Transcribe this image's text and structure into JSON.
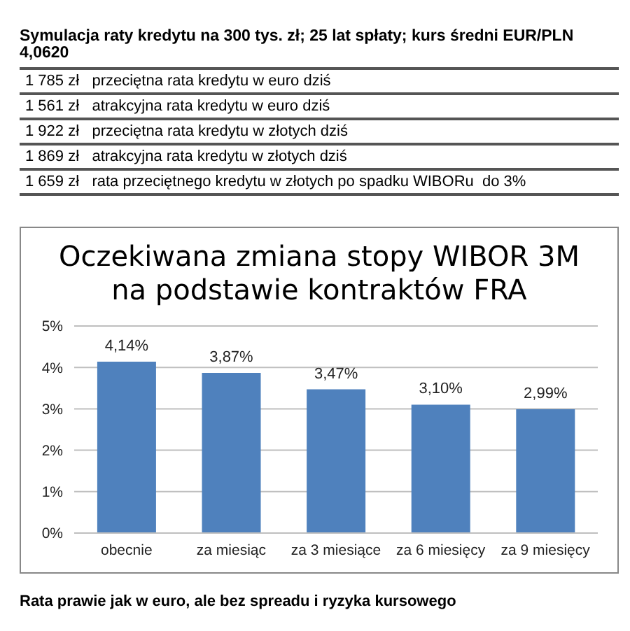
{
  "chart_data": [
    {
      "type": "other",
      "title": "Symulacja raty kredytu na 300 tys. zł; 25 lat spłaty; kurs średni EUR/PLN 4,0620",
      "annotations": [
        "1 785 zł   przeciętna rata kredytu w euro dziś",
        "1 561 zł   atrakcyjna rata kredytu w euro dziś",
        "1 922 zł   przeciętna rata kredytu w złotych dziś",
        "1 869 zł   atrakcyjna rata kredytu w złotych dziś",
        "1 659 zł   rata przeciętnego kredytu w złotych po spadku WIBORu  do 3%"
      ]
    },
    {
      "type": "bar",
      "title": "Oczekiwana zmiana stopy WIBOR 3M\nna podstawie kontraktów FRA",
      "categories": [
        "obecnie",
        "za miesiąc",
        "za 3 miesiące",
        "za 6 miesięcy",
        "za 9 miesięcy"
      ],
      "values": [
        4.14,
        3.87,
        3.47,
        3.1,
        2.99
      ],
      "value_labels": [
        "4,14%",
        "3,87%",
        "3,47%",
        "3,10%",
        "2,99%"
      ],
      "color": "#4f81bd",
      "ylim": [
        0,
        5
      ],
      "yticks": [
        {
          "value": 0,
          "label": "0%"
        },
        {
          "value": 1,
          "label": "1%"
        },
        {
          "value": 2,
          "label": "2%"
        },
        {
          "value": 3,
          "label": "3%"
        },
        {
          "value": 4,
          "label": "4%"
        },
        {
          "value": 5,
          "label": "5%"
        }
      ],
      "grid": "y",
      "legend": false,
      "annotations": [
        "Rata prawie jak w euro, ale bez spreadu i ryzyka kursowego"
      ]
    }
  ]
}
